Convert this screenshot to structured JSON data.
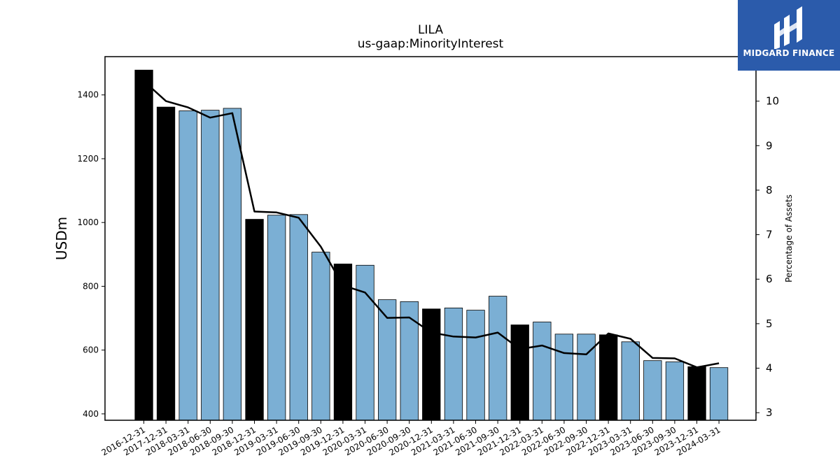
{
  "chart_data": {
    "type": "bar",
    "title": "LILA",
    "subtitle": "us-gaap:MinorityInterest",
    "ylabel": "USDm",
    "y2label": "Percentage of Assets",
    "ylim": [
      380,
      1520
    ],
    "y2lim": [
      2.83,
      11.0
    ],
    "yticks": [
      400,
      600,
      800,
      1000,
      1200,
      1400
    ],
    "y2ticks": [
      3,
      4,
      5,
      6,
      7,
      8,
      9,
      10
    ],
    "grid": false,
    "categories": [
      "2016-12-31",
      "2017-12-31",
      "2018-03-31",
      "2018-06-30",
      "2018-09-30",
      "2018-12-31",
      "2019-03-31",
      "2019-06-30",
      "2019-09-30",
      "2019-12-31",
      "2020-03-31",
      "2020-06-30",
      "2020-09-30",
      "2020-12-31",
      "2021-03-31",
      "2021-06-30",
      "2021-09-30",
      "2021-12-31",
      "2022-03-31",
      "2022-06-30",
      "2022-09-30",
      "2022-12-31",
      "2023-03-31",
      "2023-06-30",
      "2023-09-30",
      "2023-12-31",
      "2024-03-31"
    ],
    "series": [
      {
        "kind": "bar",
        "values": [
          1478,
          1362,
          1350,
          1352,
          1358,
          1010,
          1023,
          1025,
          907,
          870,
          866,
          758,
          752,
          729,
          732,
          725,
          769,
          679,
          688,
          650,
          650,
          648,
          626,
          567,
          563,
          548,
          545
        ],
        "year_end_color": "#000000",
        "quarter_color": "#7bafd4"
      },
      {
        "kind": "line",
        "axis": "right",
        "color": "#000000",
        "values": [
          10.45,
          10.0,
          9.86,
          9.63,
          9.73,
          7.52,
          7.5,
          7.38,
          6.73,
          5.86,
          5.7,
          5.13,
          5.14,
          4.8,
          4.71,
          4.69,
          4.8,
          4.43,
          4.51,
          4.34,
          4.31,
          4.78,
          4.66,
          4.23,
          4.22,
          4.02,
          4.11
        ]
      }
    ]
  },
  "logo": {
    "text": "MIDGARD FINANCE",
    "bg_color": "#2b5bab"
  }
}
